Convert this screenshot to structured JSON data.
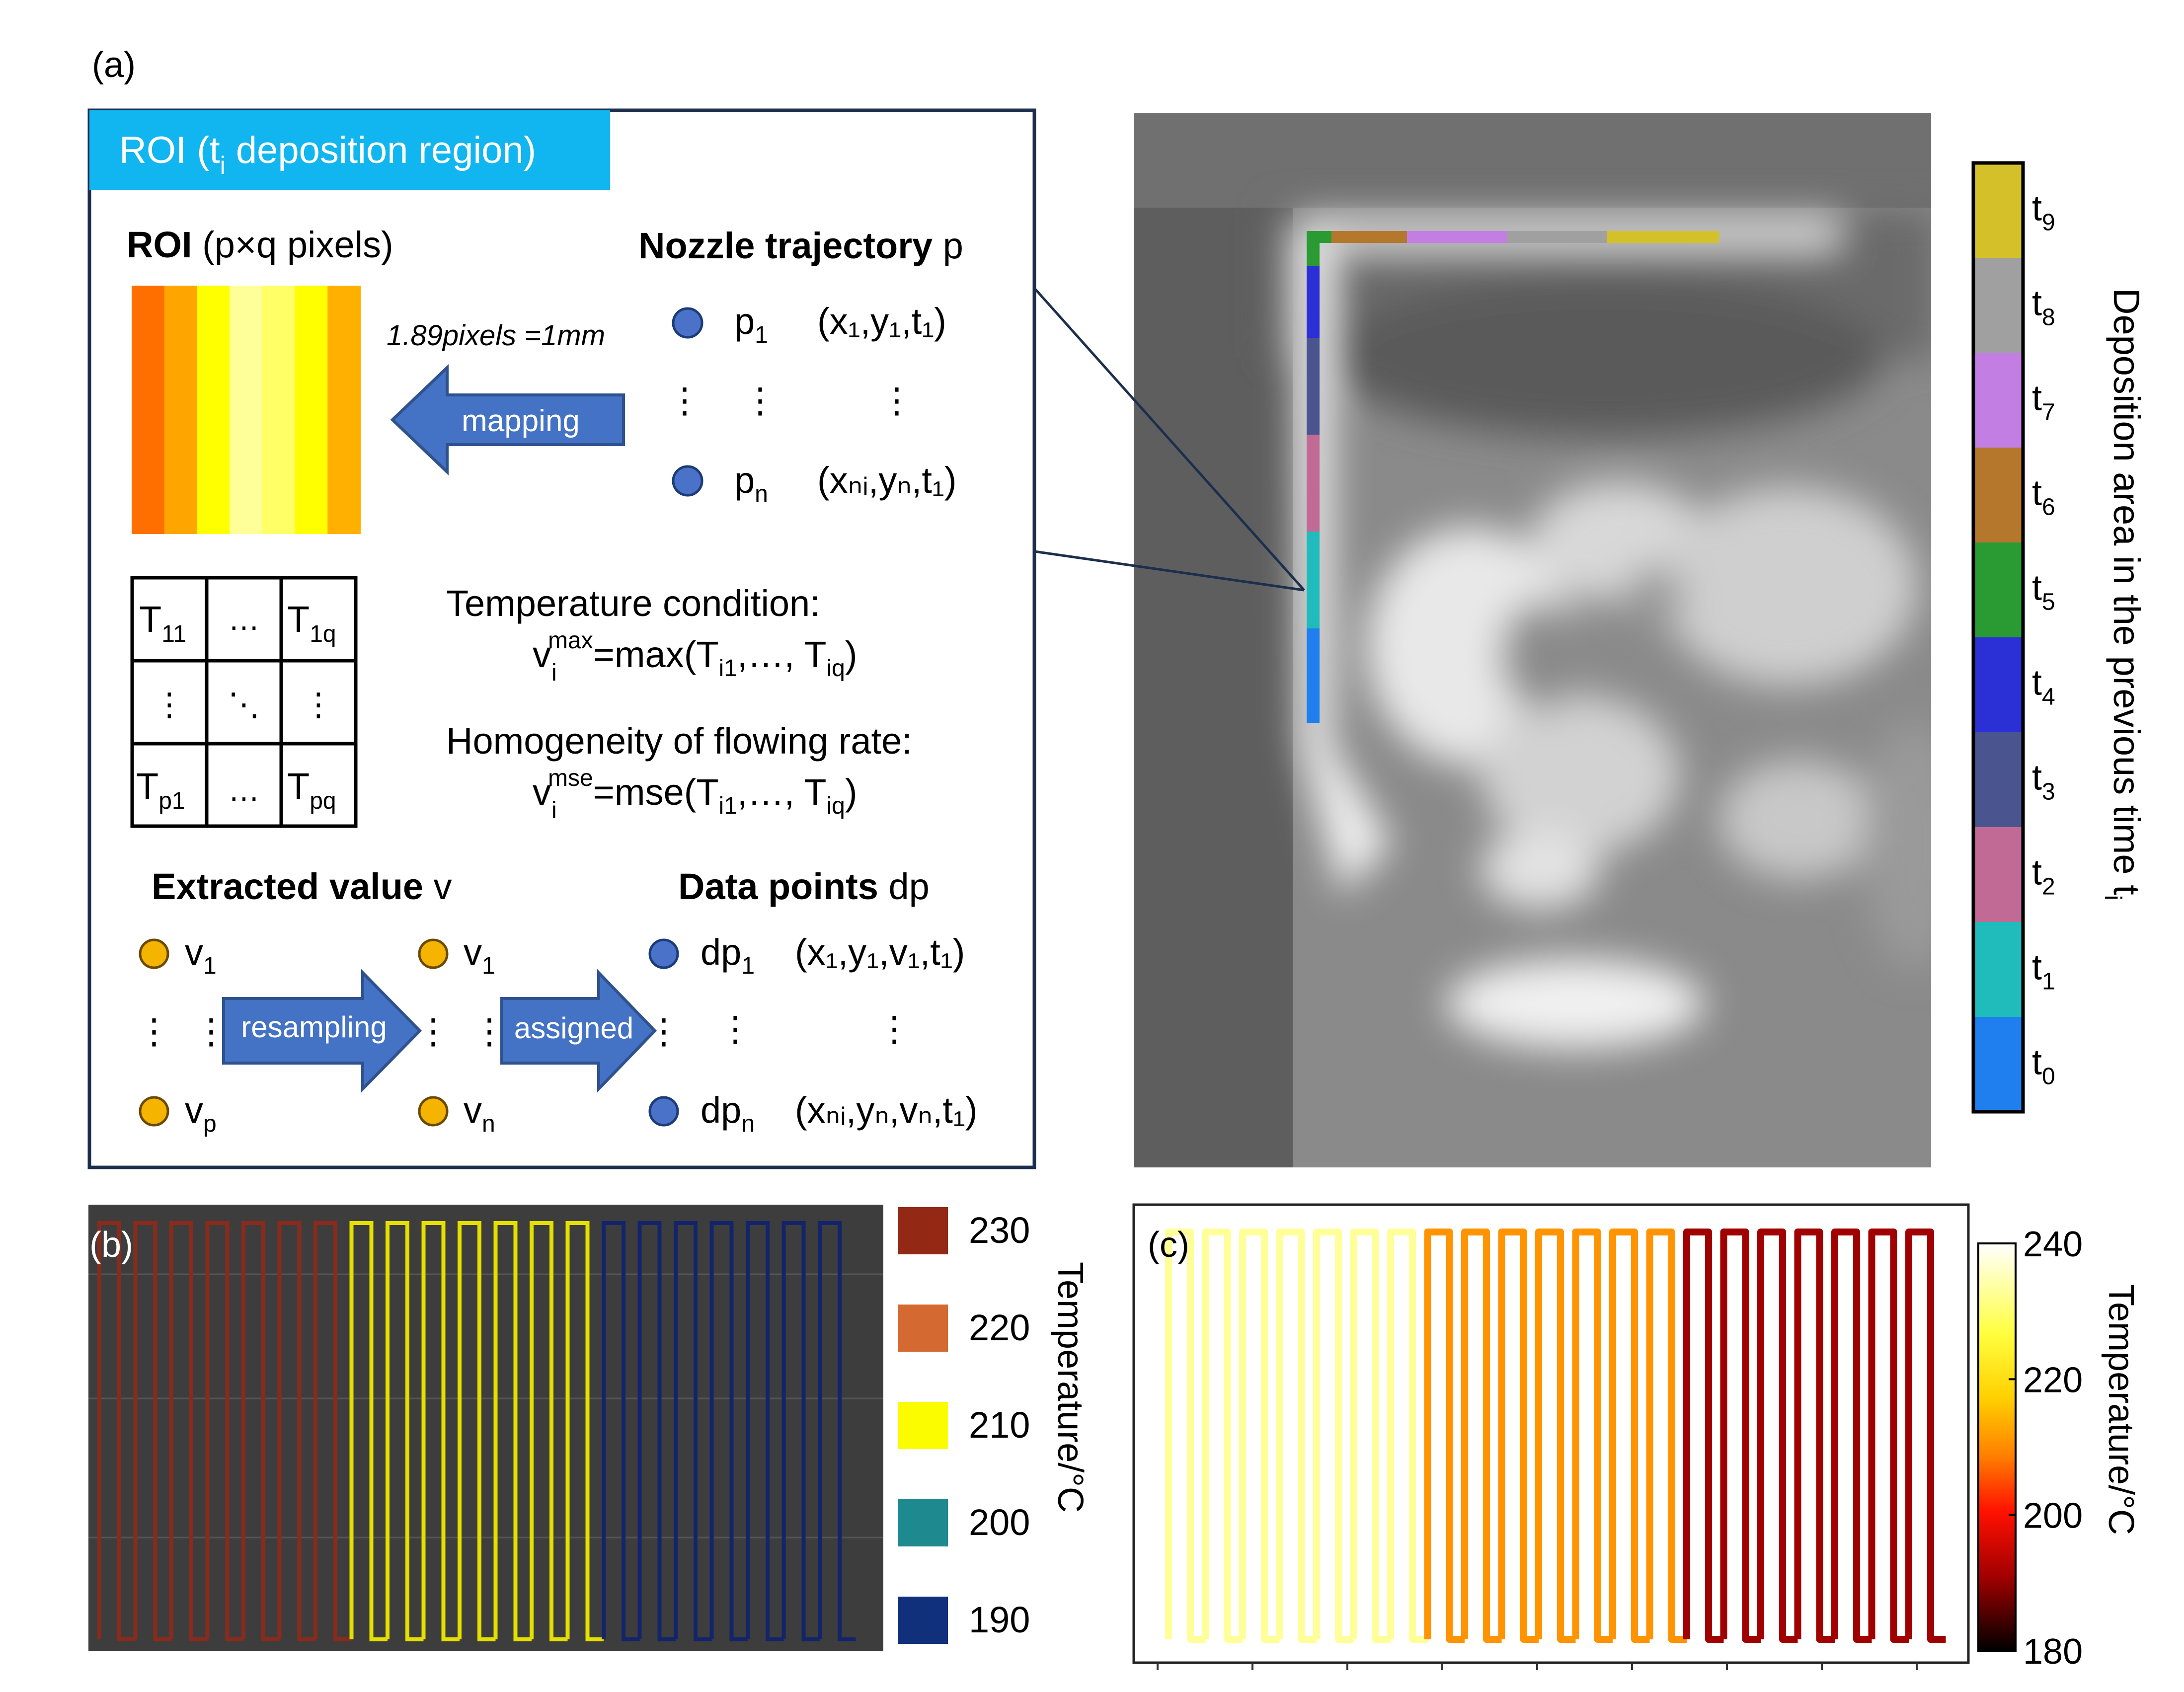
{
  "panel_a": {
    "label": "(a)",
    "roi_tab": {
      "main": "ROI (t",
      "sub": "i",
      "tail": " deposition region)"
    },
    "roi_heading": {
      "bold": "ROI",
      "rest": " (p×q pixels)"
    },
    "roi_strip_colors": [
      "#ff6f00",
      "#ffa500",
      "#ffff00",
      "#ffff99",
      "#ffff66",
      "#ffff00",
      "#ffb000"
    ],
    "scale_note": "1.89pixels =1mm",
    "mapping_label": "mapping",
    "nozzle_heading": {
      "bold": "Nozzle trajectory",
      "rest": " p"
    },
    "p1": {
      "name": "p",
      "sub": "1",
      "coord": "(x₁,y₁,t₁)"
    },
    "pn": {
      "name": "p",
      "sub": "n",
      "coord": "(xₙᵢ,yₙ,t₁)"
    },
    "matrix": {
      "t11": "T",
      "t11_sub": "11",
      "dots_h": "…",
      "t1q": "T",
      "t1q_sub": "1q",
      "dots_v": "⋮",
      "dots_d": "⋱",
      "tp1": "T",
      "tp1_sub": "p1",
      "tpq": "T",
      "tpq_sub": "pq"
    },
    "temp_condition_title": "Temperature condition:",
    "temp_condition_formula": {
      "v": "v",
      "sup": "max",
      "sub": "i",
      "rhs": "=max(T",
      "a": "i1",
      "mid": ",…, T",
      "b": "iq",
      "end": ")"
    },
    "homog_title": "Homogeneity of flowing rate:",
    "homog_formula": {
      "v": "v",
      "sup": "mse",
      "sub": "i",
      "rhs": "=mse(T",
      "a": "i1",
      "mid": ",…, T",
      "b": "iq",
      "end": ")"
    },
    "extracted_heading": {
      "bold": "Extracted value",
      "rest": " v"
    },
    "datapoints_heading": {
      "bold": "Data points",
      "rest": " dp"
    },
    "v1": {
      "name": "v",
      "sub": "1"
    },
    "vp": {
      "name": "v",
      "sub": "p"
    },
    "vn": {
      "name": "v",
      "sub": "n"
    },
    "dp1": {
      "name": "dp",
      "sub": "1",
      "coord": "(x₁,y₁,v₁,t₁)"
    },
    "dpn": {
      "name": "dp",
      "sub": "n",
      "coord": "(xₙᵢ,yₙ,vₙ,t₁)"
    },
    "resampling_label": "resampling",
    "assigned_label": "assigned",
    "ellipsis": "⋮"
  },
  "deposition_legend": {
    "title": "Deposition area in the previous time t",
    "title_sub": "i",
    "entries": [
      {
        "t": "t",
        "sub": "9",
        "color": "#d4c12a"
      },
      {
        "t": "t",
        "sub": "8",
        "color": "#a0a0a0"
      },
      {
        "t": "t",
        "sub": "7",
        "color": "#c37ee3"
      },
      {
        "t": "t",
        "sub": "6",
        "color": "#b5772c"
      },
      {
        "t": "t",
        "sub": "5",
        "color": "#2a9b33"
      },
      {
        "t": "t",
        "sub": "4",
        "color": "#2b2fd6"
      },
      {
        "t": "t",
        "sub": "3",
        "color": "#4a5590"
      },
      {
        "t": "t",
        "sub": "2",
        "color": "#c06a95"
      },
      {
        "t": "t",
        "sub": "1",
        "color": "#20bcbc"
      },
      {
        "t": "t",
        "sub": "0",
        "color": "#1f7fef"
      }
    ]
  },
  "panel_b": {
    "label": "(b)",
    "legend_title": "Temperature/°C",
    "legend": [
      {
        "value": "230",
        "color": "#932814"
      },
      {
        "value": "220",
        "color": "#d46932"
      },
      {
        "value": "210",
        "color": "#fcfc00"
      },
      {
        "value": "200",
        "color": "#1e8a8f"
      },
      {
        "value": "190",
        "color": "#11307c"
      }
    ],
    "segments": [
      {
        "color": "#8a2a1c",
        "count": 7
      },
      {
        "color": "#e6e000",
        "count": 7
      },
      {
        "color": "#13246a",
        "count": 7
      }
    ]
  },
  "panel_c": {
    "label": "(c)",
    "colorbar_title": "Temperature/°C",
    "colorbar_ticks": [
      "240",
      "220",
      "200",
      "180"
    ],
    "colorbar_stops": [
      "#ffffff",
      "#ffff40",
      "#ffd000",
      "#ff8000",
      "#ff1000",
      "#a00000",
      "#000000"
    ],
    "segments": [
      {
        "color": "#ffff99",
        "count": 7
      },
      {
        "color": "#ff9400",
        "count": 7
      },
      {
        "color": "#a00000",
        "count": 7
      }
    ]
  }
}
